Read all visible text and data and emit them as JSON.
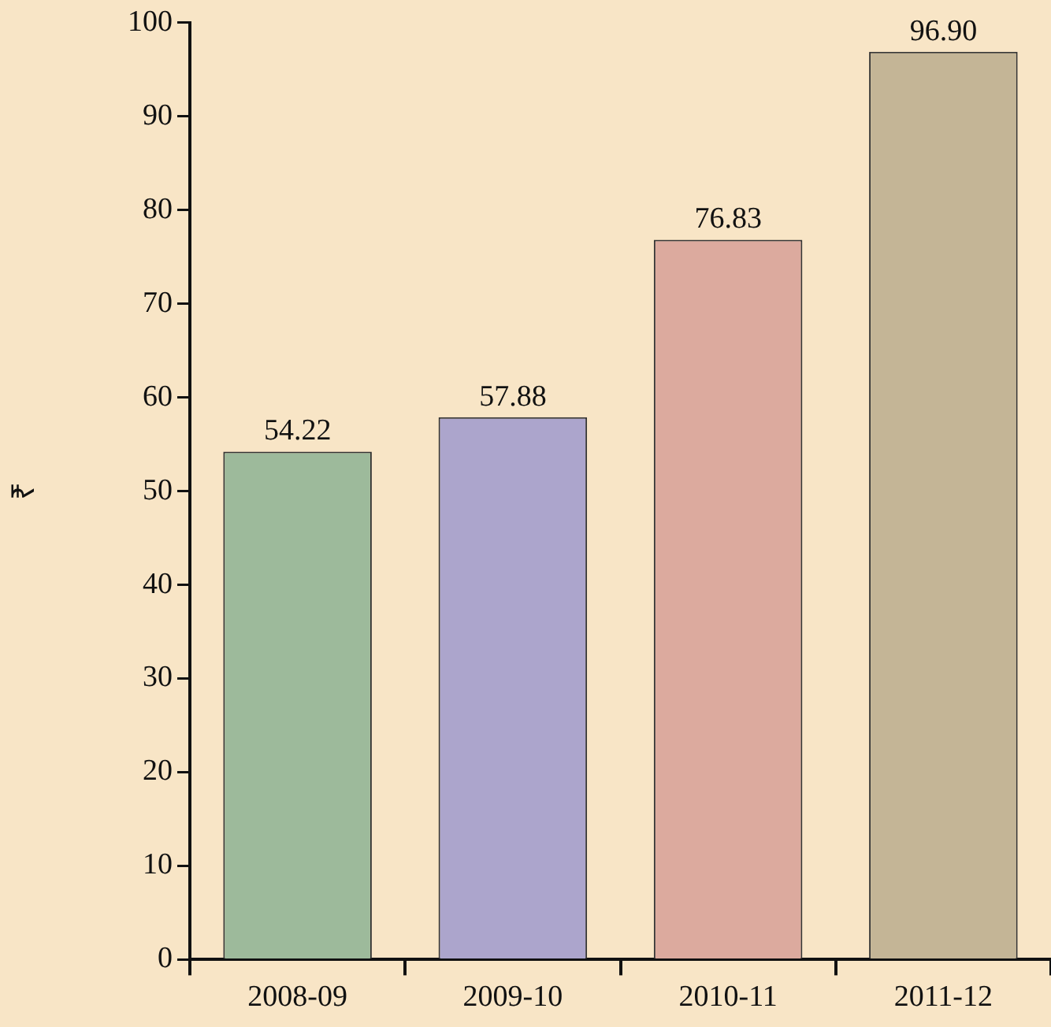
{
  "chart_data": {
    "type": "bar",
    "ylabel": "₹",
    "categories": [
      "2008-09",
      "2009-10",
      "2010-11",
      "2011-12"
    ],
    "values": [
      54.22,
      57.88,
      76.83,
      96.9
    ],
    "value_labels": [
      "54.22",
      "57.88",
      "76.83",
      "96.90"
    ],
    "colors": [
      "#9dba9b",
      "#aca5cc",
      "#dcaa9e",
      "#c4b596"
    ],
    "ylim": [
      0,
      100
    ],
    "yticks": [
      0,
      10,
      20,
      30,
      40,
      50,
      60,
      70,
      80,
      90,
      100
    ],
    "grid": false,
    "legend": false
  }
}
